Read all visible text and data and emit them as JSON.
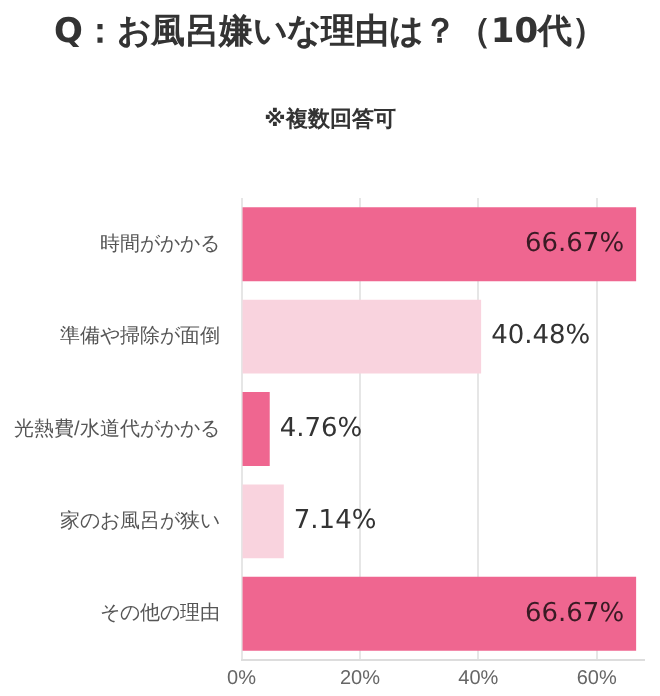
{
  "chart_data": {
    "type": "bar",
    "orientation": "horizontal",
    "title": "Q：お風呂嫌いな理由は？（10代）",
    "subtitle": "※複数回答可",
    "categories": [
      "時間がかかる",
      "準備や掃除が面倒",
      "光熱費/水道代がかかる",
      "家のお風呂が狭い",
      "その他の理由"
    ],
    "values": [
      66.67,
      40.48,
      4.76,
      7.14,
      66.67
    ],
    "colors": [
      "#ef6690",
      "#f9d3de",
      "#ef6690",
      "#f9d3de",
      "#ef6690"
    ],
    "value_labels": [
      "66.67%",
      "40.48%",
      "4.76%",
      "7.14%",
      "66.67%"
    ],
    "xlim": [
      0,
      68
    ],
    "xticks": [
      {
        "value": 0,
        "label": "0%"
      },
      {
        "value": 20,
        "label": "20%"
      },
      {
        "value": 40,
        "label": "40%"
      },
      {
        "value": 60,
        "label": "60%"
      }
    ],
    "grid": "x",
    "legend": false
  }
}
